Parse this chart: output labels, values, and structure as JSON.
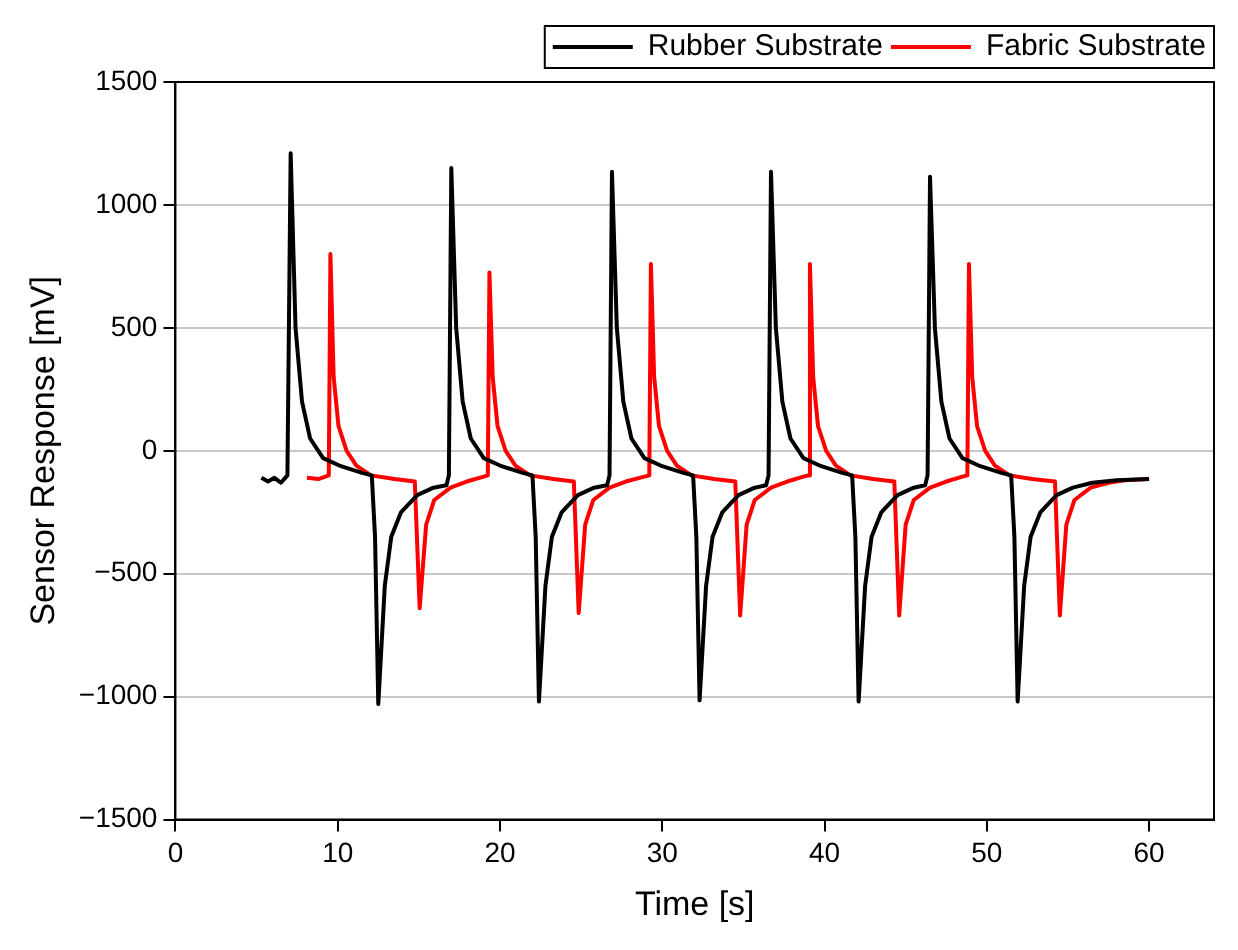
{
  "chart_data": {
    "type": "line",
    "xlabel": "Time [s]",
    "ylabel": "Sensor Response [mV]",
    "xlim": [
      0,
      64
    ],
    "ylim": [
      -1500,
      1500
    ],
    "xticks": [
      0,
      10,
      20,
      30,
      40,
      50,
      60
    ],
    "yticks": [
      -1500,
      -1000,
      -500,
      0,
      500,
      1000,
      1500
    ],
    "grid": "y",
    "legend": "top right",
    "marker": "none",
    "line_style": "solid",
    "series": [
      {
        "name": "Rubber Substrate",
        "color": "#000000",
        "x": [
          5.3,
          5.7,
          6.1,
          6.5,
          6.9,
          7.1,
          7.4,
          7.8,
          8.3,
          9.1,
          10.1,
          11.5,
          12.1,
          12.3,
          12.5,
          12.9,
          13.3,
          13.9,
          14.9,
          15.9,
          16.7,
          16.85,
          17.0,
          17.3,
          17.7,
          18.2,
          19.0,
          20.0,
          21.4,
          22.0,
          22.2,
          22.4,
          22.8,
          23.2,
          23.8,
          24.8,
          25.8,
          26.6,
          26.75,
          26.9,
          27.2,
          27.6,
          28.1,
          28.9,
          29.9,
          31.3,
          31.9,
          32.1,
          32.3,
          32.7,
          33.1,
          33.7,
          34.7,
          35.7,
          36.4,
          36.55,
          36.7,
          37.0,
          37.4,
          37.9,
          38.7,
          39.7,
          41.1,
          41.7,
          41.9,
          42.1,
          42.5,
          42.9,
          43.5,
          44.5,
          45.5,
          46.2,
          46.35,
          46.5,
          46.8,
          47.2,
          47.7,
          48.5,
          49.5,
          50.9,
          51.5,
          51.7,
          51.9,
          52.3,
          52.7,
          53.3,
          54.3,
          55.3,
          56.5,
          58,
          60
        ],
        "values": [
          -110,
          -125,
          -110,
          -130,
          -100,
          1210,
          500,
          200,
          50,
          -30,
          -60,
          -90,
          -100,
          -350,
          -1030,
          -550,
          -350,
          -250,
          -180,
          -150,
          -140,
          -100,
          1150,
          500,
          200,
          50,
          -30,
          -60,
          -90,
          -100,
          -350,
          -1020,
          -550,
          -350,
          -250,
          -180,
          -150,
          -140,
          -100,
          1135,
          500,
          200,
          50,
          -30,
          -60,
          -90,
          -100,
          -350,
          -1015,
          -550,
          -350,
          -250,
          -180,
          -150,
          -140,
          -100,
          1135,
          500,
          200,
          50,
          -30,
          -60,
          -90,
          -100,
          -350,
          -1020,
          -550,
          -350,
          -250,
          -180,
          -150,
          -140,
          -100,
          1115,
          500,
          200,
          50,
          -30,
          -60,
          -90,
          -100,
          -350,
          -1020,
          -550,
          -350,
          -250,
          -180,
          -150,
          -130,
          -120,
          -115
        ]
      },
      {
        "name": "Fabric Substrate",
        "color": "#ff0000",
        "x": [
          8.1,
          8.8,
          9.45,
          9.55,
          9.75,
          10.05,
          10.55,
          11.15,
          12.05,
          13.5,
          14.75,
          15.05,
          15.45,
          15.95,
          16.95,
          17.95,
          19.0,
          19.25,
          19.35,
          19.55,
          19.85,
          20.35,
          20.95,
          21.85,
          23.3,
          24.55,
          24.85,
          25.25,
          25.75,
          26.75,
          27.75,
          28.9,
          29.2,
          29.3,
          29.5,
          29.8,
          30.3,
          30.9,
          31.8,
          33.2,
          34.5,
          34.8,
          35.2,
          35.7,
          36.7,
          37.7,
          38.7,
          39.0,
          39.1,
          39.3,
          39.6,
          40.1,
          40.7,
          41.6,
          43.0,
          44.3,
          44.6,
          45.0,
          45.5,
          46.5,
          47.5,
          48.5,
          48.8,
          48.9,
          49.1,
          49.4,
          49.9,
          50.5,
          51.4,
          52.8,
          54.2,
          54.5,
          54.9,
          55.4,
          56.4,
          57.5,
          58.5,
          60
        ],
        "values": [
          -110,
          -115,
          -100,
          800,
          300,
          100,
          0,
          -60,
          -100,
          -115,
          -125,
          -640,
          -300,
          -200,
          -150,
          -125,
          -105,
          -100,
          725,
          300,
          100,
          0,
          -60,
          -100,
          -115,
          -125,
          -660,
          -300,
          -200,
          -150,
          -125,
          -105,
          -100,
          760,
          300,
          100,
          0,
          -60,
          -100,
          -115,
          -125,
          -670,
          -300,
          -200,
          -150,
          -125,
          -105,
          -100,
          760,
          300,
          100,
          0,
          -60,
          -100,
          -115,
          -125,
          -670,
          -300,
          -200,
          -150,
          -125,
          -105,
          -100,
          760,
          300,
          100,
          0,
          -60,
          -100,
          -115,
          -125,
          -670,
          -300,
          -200,
          -150,
          -130,
          -120,
          -115
        ]
      }
    ]
  }
}
